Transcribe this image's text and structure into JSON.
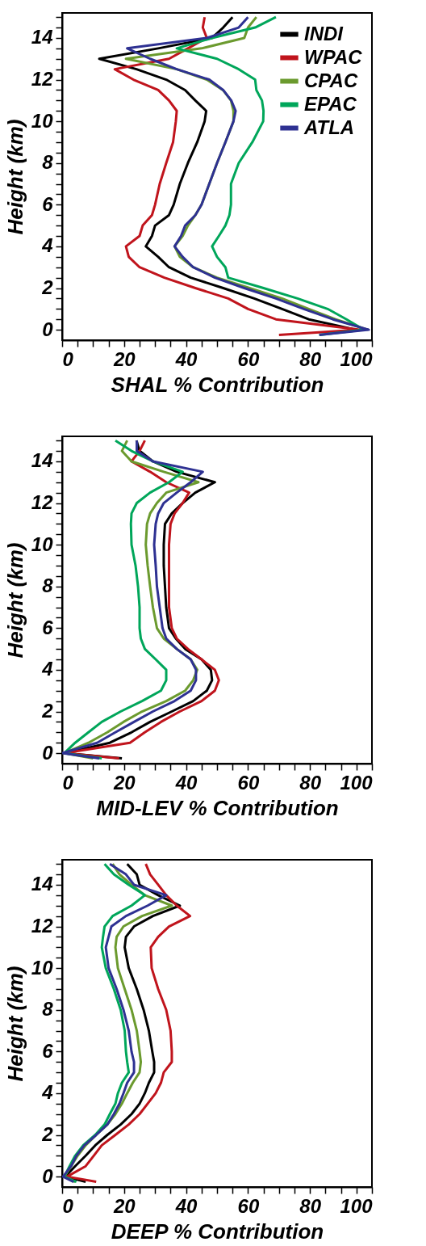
{
  "chart_data": [
    {
      "type": "line",
      "xlabel": "SHAL % Contribution",
      "ylabel": "Height (km)",
      "xlim": [
        0,
        100
      ],
      "ylim": [
        -0.5,
        15.2
      ],
      "legend": "top right",
      "line_style": "solid",
      "xticks": [
        0,
        {
          "value": 5,
          "label": null
        },
        {
          "value": 10,
          "label": null
        },
        {
          "value": 15,
          "label": null
        },
        20,
        {
          "value": 25,
          "label": null
        },
        {
          "value": 30,
          "label": null
        },
        {
          "value": 35,
          "label": null
        },
        40,
        {
          "value": 45,
          "label": null
        },
        {
          "value": 50,
          "label": null
        },
        {
          "value": 55,
          "label": null
        },
        60,
        {
          "value": 65,
          "label": null
        },
        {
          "value": 70,
          "label": null
        },
        {
          "value": 75,
          "label": null
        },
        80,
        {
          "value": 85,
          "label": null
        },
        {
          "value": 90,
          "label": null
        },
        {
          "value": 95,
          "label": null
        },
        100
      ],
      "yticks": [
        0,
        {
          "value": 0.5,
          "label": null
        },
        {
          "value": 1,
          "label": null
        },
        {
          "value": 1.5,
          "label": null
        },
        2,
        {
          "value": 2.5,
          "label": null
        },
        {
          "value": 3,
          "label": null
        },
        {
          "value": 3.5,
          "label": null
        },
        4,
        {
          "value": 4.5,
          "label": null
        },
        {
          "value": 5,
          "label": null
        },
        {
          "value": 5.5,
          "label": null
        },
        6,
        {
          "value": 6.5,
          "label": null
        },
        {
          "value": 7,
          "label": null
        },
        {
          "value": 7.5,
          "label": null
        },
        8,
        {
          "value": 8.5,
          "label": null
        },
        {
          "value": 9,
          "label": null
        },
        {
          "value": 9.5,
          "label": null
        },
        10,
        {
          "value": 10.5,
          "label": null
        },
        {
          "value": 11,
          "label": null
        },
        {
          "value": 11.5,
          "label": null
        },
        12,
        {
          "value": 12.5,
          "label": null
        },
        {
          "value": 13,
          "label": null
        },
        {
          "value": 13.5,
          "label": null
        },
        14,
        {
          "value": 14.5,
          "label": null
        },
        {
          "value": 15,
          "label": null
        }
      ],
      "series": [
        {
          "name": "INDI",
          "color": "#000000",
          "x": [
            95,
            79.6,
            71,
            62,
            52,
            41.5,
            34.5,
            31,
            27,
            29,
            30,
            34.5,
            36,
            38,
            40.6,
            43.6,
            46,
            46.5,
            43,
            39.7,
            33.6,
            24,
            12,
            31,
            48.4,
            52,
            55
          ],
          "values": [
            0,
            0.5,
            1,
            1.5,
            2,
            2.5,
            3,
            3.5,
            4,
            4.5,
            5,
            5.5,
            6,
            7,
            8,
            9,
            10,
            10.5,
            11,
            11.5,
            12,
            12.5,
            13,
            13.5,
            14,
            14.5,
            15
          ]
        },
        {
          "name": "WPAC",
          "color": "#c0141c",
          "x": [
            70,
            96,
            69,
            60,
            53.6,
            43,
            33,
            25,
            21.5,
            20.6,
            25,
            26,
            29,
            30,
            31.5,
            33.6,
            35.8,
            36.7,
            37,
            34.5,
            31,
            23,
            17,
            34.5,
            40.6,
            46.7,
            45.4,
            46
          ],
          "values": [
            -0.25,
            0,
            0.5,
            1,
            1.5,
            2,
            2.5,
            3,
            3.5,
            4,
            4.5,
            5,
            5.5,
            6,
            7,
            8,
            9,
            10,
            10.5,
            11,
            11.5,
            12,
            12.5,
            13,
            13.5,
            14,
            14.5,
            15
          ]
        },
        {
          "name": "CPAC",
          "color": "#6b9a2e",
          "x": [
            98.7,
            88.3,
            79.6,
            71,
            60.5,
            50,
            42.3,
            38,
            36.3,
            38.9,
            40.6,
            43,
            45,
            47.5,
            50,
            52.7,
            55.3,
            55.3,
            54.5,
            51.9,
            46.7,
            37,
            20.6,
            45,
            58.8,
            60,
            62.7
          ],
          "values": [
            0,
            0.5,
            1,
            1.5,
            2,
            2.5,
            3,
            3.5,
            4,
            4.5,
            5,
            5.5,
            6,
            7,
            8,
            9,
            10,
            10.5,
            11,
            11.5,
            12,
            12.5,
            13,
            13.5,
            14,
            14.5,
            15
          ]
        },
        {
          "name": "EPAC",
          "color": "#00a65a",
          "x": [
            83,
            97.4,
            91.8,
            85.7,
            76,
            65,
            53.6,
            52.7,
            50,
            48.4,
            50.6,
            52.7,
            54,
            54.5,
            54.5,
            57,
            61.4,
            64.9,
            65,
            64.5,
            62.7,
            62.3,
            57,
            50,
            37,
            48.4,
            62.3,
            69
          ],
          "values": [
            -0.25,
            0,
            0.5,
            1,
            1.5,
            2,
            2.5,
            3,
            3.5,
            4,
            4.5,
            5,
            5.5,
            6,
            7,
            8,
            9,
            10,
            10.5,
            11,
            11.5,
            12,
            12.5,
            13,
            13.5,
            14,
            14.5,
            15
          ]
        },
        {
          "name": "ATLA",
          "color": "#2e3192",
          "x": [
            83,
            99,
            87.4,
            78,
            69,
            58.8,
            49.3,
            42.3,
            38.9,
            36.3,
            38.4,
            39.7,
            43,
            45,
            47.5,
            50,
            52.7,
            55.3,
            56,
            54.6,
            52,
            47.5,
            37,
            28.4,
            21,
            46.7,
            57,
            60
          ],
          "values": [
            -0.25,
            0,
            0.5,
            1,
            1.5,
            2,
            2.5,
            3,
            3.5,
            4,
            4.5,
            5,
            5.5,
            6,
            7,
            8,
            9,
            10,
            10.5,
            11,
            11.5,
            12,
            12.5,
            13,
            13.5,
            14,
            14.5,
            15
          ]
        }
      ]
    },
    {
      "type": "line",
      "xlabel": "MID-LEV % Contribution",
      "ylabel": "Height (km)",
      "xlim": [
        0,
        100
      ],
      "ylim": [
        -0.5,
        15.2
      ],
      "line_style": "solid",
      "xticks": [
        0,
        {
          "value": 5,
          "label": null
        },
        {
          "value": 10,
          "label": null
        },
        {
          "value": 15,
          "label": null
        },
        20,
        {
          "value": 25,
          "label": null
        },
        {
          "value": 30,
          "label": null
        },
        {
          "value": 35,
          "label": null
        },
        40,
        {
          "value": 45,
          "label": null
        },
        {
          "value": 50,
          "label": null
        },
        {
          "value": 55,
          "label": null
        },
        60,
        {
          "value": 65,
          "label": null
        },
        {
          "value": 70,
          "label": null
        },
        {
          "value": 75,
          "label": null
        },
        80,
        {
          "value": 85,
          "label": null
        },
        {
          "value": 90,
          "label": null
        },
        {
          "value": 95,
          "label": null
        },
        100
      ],
      "yticks": [
        0,
        {
          "value": 0.5,
          "label": null
        },
        {
          "value": 1,
          "label": null
        },
        {
          "value": 1.5,
          "label": null
        },
        2,
        {
          "value": 2.5,
          "label": null
        },
        {
          "value": 3,
          "label": null
        },
        {
          "value": 3.5,
          "label": null
        },
        4,
        {
          "value": 4.5,
          "label": null
        },
        {
          "value": 5,
          "label": null
        },
        {
          "value": 5.5,
          "label": null
        },
        6,
        {
          "value": 6.5,
          "label": null
        },
        {
          "value": 7,
          "label": null
        },
        {
          "value": 7.5,
          "label": null
        },
        8,
        {
          "value": 8.5,
          "label": null
        },
        {
          "value": 9,
          "label": null
        },
        {
          "value": 9.5,
          "label": null
        },
        10,
        {
          "value": 10.5,
          "label": null
        },
        {
          "value": 11,
          "label": null
        },
        {
          "value": 11.5,
          "label": null
        },
        12,
        {
          "value": 12.5,
          "label": null
        },
        {
          "value": 13,
          "label": null
        },
        {
          "value": 13.5,
          "label": null
        },
        14,
        {
          "value": 14.5,
          "label": null
        },
        {
          "value": 15,
          "label": null
        }
      ],
      "series": [
        {
          "name": "INDI",
          "color": "#000000",
          "x": [
            19.3,
            0.7,
            15.4,
            22.4,
            28.4,
            35.4,
            42.3,
            46.7,
            48.4,
            48,
            45,
            39.7,
            36.7,
            34.5,
            33.6,
            33.2,
            32.8,
            32.8,
            33.2,
            35.4,
            38.9,
            43,
            49.3,
            37,
            29.3,
            25,
            24
          ],
          "values": [
            -0.25,
            0,
            0.5,
            1,
            1.5,
            2,
            2.5,
            3,
            3.5,
            4,
            4.5,
            5,
            5.5,
            6,
            7,
            8,
            9,
            10,
            11,
            11.5,
            12,
            12.5,
            13,
            13.5,
            14,
            14.5,
            15
          ]
        },
        {
          "name": "WPAC",
          "color": "#c0141c",
          "x": [
            18.4,
            0.7,
            21.9,
            26.7,
            31.9,
            38,
            45,
            49.3,
            50.6,
            49.3,
            45,
            40.6,
            37,
            35.4,
            34.5,
            34.5,
            34.5,
            34.5,
            35,
            36.3,
            38.9,
            41,
            33.6,
            28.4,
            22.4,
            25,
            26.7
          ],
          "values": [
            -0.25,
            0,
            0.5,
            1,
            1.5,
            2,
            2.5,
            3,
            3.5,
            4,
            4.5,
            5,
            5.5,
            6,
            7,
            8,
            9,
            10,
            11,
            11.5,
            12,
            12.5,
            13,
            13.5,
            14,
            14.5,
            15
          ]
        },
        {
          "name": "CPAC",
          "color": "#6b9a2e",
          "x": [
            10,
            0.7,
            8.5,
            14.6,
            19.8,
            25.8,
            33.6,
            39.7,
            42.3,
            43.6,
            41.5,
            37,
            32.8,
            30.6,
            29.3,
            28.4,
            27.6,
            27,
            27.4,
            28.4,
            30.6,
            33.6,
            44,
            32.8,
            22.4,
            19.3,
            21
          ],
          "values": [
            -0.25,
            0,
            0.5,
            1,
            1.5,
            2,
            2.5,
            3,
            3.5,
            4,
            4.5,
            5,
            5.5,
            6,
            7,
            8,
            9,
            10,
            11,
            11.5,
            12,
            12.5,
            13,
            13.5,
            14,
            14.5,
            15
          ]
        },
        {
          "name": "EPAC",
          "color": "#00a65a",
          "x": [
            12.8,
            0.7,
            4.2,
            8.5,
            12.8,
            18.9,
            25.8,
            31.9,
            33.6,
            33.6,
            30.2,
            26.7,
            25.4,
            25,
            25,
            24.5,
            23.7,
            22.4,
            22.2,
            22.4,
            24.1,
            28.4,
            34.5,
            38.9,
            29.3,
            22.4,
            17.2
          ],
          "values": [
            -0.25,
            0,
            0.5,
            1,
            1.5,
            2,
            2.5,
            3,
            3.5,
            4,
            4.5,
            5,
            5.5,
            6,
            7,
            8,
            9,
            10,
            11,
            11.5,
            12,
            12.5,
            13,
            13.5,
            14,
            14.5,
            15
          ]
        },
        {
          "name": "ATLA",
          "color": "#2e3192",
          "x": [
            12,
            0,
            11.3,
            17.2,
            23.2,
            29.3,
            36.3,
            41.5,
            43.2,
            43.2,
            41.5,
            37,
            33.6,
            32.4,
            31.5,
            30.6,
            30.2,
            29.7,
            30.2,
            31,
            32.8,
            37,
            41.5,
            45.4,
            29.3,
            24.1,
            24.1
          ],
          "values": [
            -0.25,
            0,
            0.5,
            1,
            1.5,
            2,
            2.5,
            3,
            3.5,
            4,
            4.5,
            5,
            5.5,
            6,
            7,
            8,
            9,
            10,
            11,
            11.5,
            12,
            12.5,
            13,
            13.5,
            14,
            14.5,
            15
          ]
        }
      ]
    },
    {
      "type": "line",
      "xlabel": "DEEP % Contribution",
      "ylabel": "Height (km)",
      "xlim": [
        0,
        100
      ],
      "ylim": [
        -0.5,
        15.2
      ],
      "line_style": "solid",
      "xticks": [
        0,
        {
          "value": 5,
          "label": null
        },
        {
          "value": 10,
          "label": null
        },
        {
          "value": 15,
          "label": null
        },
        20,
        {
          "value": 25,
          "label": null
        },
        {
          "value": 30,
          "label": null
        },
        {
          "value": 35,
          "label": null
        },
        40,
        {
          "value": 45,
          "label": null
        },
        {
          "value": 50,
          "label": null
        },
        {
          "value": 55,
          "label": null
        },
        60,
        {
          "value": 65,
          "label": null
        },
        {
          "value": 70,
          "label": null
        },
        {
          "value": 75,
          "label": null
        },
        80,
        {
          "value": 85,
          "label": null
        },
        {
          "value": 90,
          "label": null
        },
        {
          "value": 95,
          "label": null
        },
        100
      ],
      "yticks": [
        0,
        {
          "value": 0.5,
          "label": null
        },
        {
          "value": 1,
          "label": null
        },
        {
          "value": 1.5,
          "label": null
        },
        2,
        {
          "value": 2.5,
          "label": null
        },
        {
          "value": 3,
          "label": null
        },
        {
          "value": 3.5,
          "label": null
        },
        4,
        {
          "value": 4.5,
          "label": null
        },
        {
          "value": 5,
          "label": null
        },
        {
          "value": 5.5,
          "label": null
        },
        6,
        {
          "value": 6.5,
          "label": null
        },
        {
          "value": 7,
          "label": null
        },
        {
          "value": 7.5,
          "label": null
        },
        8,
        {
          "value": 8.5,
          "label": null
        },
        {
          "value": 9,
          "label": null
        },
        {
          "value": 9.5,
          "label": null
        },
        10,
        {
          "value": 10.5,
          "label": null
        },
        {
          "value": 11,
          "label": null
        },
        {
          "value": 11.5,
          "label": null
        },
        12,
        {
          "value": 12.5,
          "label": null
        },
        {
          "value": 13,
          "label": null
        },
        {
          "value": 13.5,
          "label": null
        },
        14,
        {
          "value": 14.5,
          "label": null
        },
        {
          "value": 15,
          "label": null
        }
      ],
      "series": [
        {
          "name": "INDI",
          "color": "#000000",
          "x": [
            7.6,
            1,
            4.2,
            7.6,
            10.7,
            14.6,
            18.9,
            22.4,
            25,
            26.7,
            28,
            29.7,
            29.7,
            29.1,
            28,
            26.3,
            24.1,
            21.5,
            20.2,
            20.6,
            23.2,
            29.3,
            38,
            31,
            25,
            24.1,
            21
          ],
          "values": [
            -0.25,
            0,
            0.5,
            1,
            1.5,
            2,
            2.5,
            3,
            3.5,
            4,
            4.5,
            5,
            5.5,
            6,
            7,
            8,
            9,
            10,
            11,
            11.5,
            12,
            12.5,
            13,
            13.5,
            14,
            14.5,
            15
          ]
        },
        {
          "name": "WPAC",
          "color": "#c0141c",
          "x": [
            11,
            1.6,
            7.6,
            10.2,
            12.8,
            17.2,
            21.5,
            25,
            27.6,
            30.2,
            31.9,
            32.8,
            35.4,
            35.4,
            35,
            33.6,
            31,
            28.9,
            28.6,
            31,
            34.5,
            41.3,
            37,
            33.6,
            31,
            28.4,
            27
          ],
          "values": [
            -0.25,
            0,
            0.5,
            1,
            1.5,
            2,
            2.5,
            3,
            3.5,
            4,
            4.5,
            5,
            5.5,
            6,
            7,
            8,
            9,
            10,
            11,
            11.5,
            12,
            12.5,
            13,
            13.5,
            14,
            14.5,
            15
          ]
        },
        {
          "name": "CPAC",
          "color": "#6b9a2e",
          "x": [
            4.2,
            0.7,
            2.9,
            5,
            7.6,
            11,
            14.6,
            17.2,
            19.3,
            21,
            22.8,
            25,
            25.4,
            25,
            24.1,
            22.4,
            20.2,
            18,
            17.2,
            17.6,
            19.8,
            25.8,
            35.4,
            26.7,
            22.4,
            18.5,
            16.3
          ],
          "values": [
            -0.25,
            0,
            0.5,
            1,
            1.5,
            2,
            2.5,
            3,
            3.5,
            4,
            4.5,
            5,
            5.5,
            6,
            7,
            8,
            9,
            10,
            11,
            11.5,
            12,
            12.5,
            13,
            13.5,
            14,
            14.5,
            15
          ]
        },
        {
          "name": "EPAC",
          "color": "#00a65a",
          "x": [
            4.6,
            0.7,
            2.4,
            4.2,
            6.8,
            10.7,
            13.7,
            15.4,
            17.2,
            18,
            19.3,
            21.5,
            21,
            20.6,
            20.2,
            18.9,
            16.7,
            14.1,
            12.8,
            13.2,
            13.7,
            16.3,
            22.4,
            26.7,
            21.5,
            16.7,
            13.7
          ],
          "values": [
            -0.25,
            0,
            0.5,
            1,
            1.5,
            2,
            2.5,
            3,
            3.5,
            4,
            4.5,
            5,
            5.5,
            6,
            7,
            8,
            9,
            10,
            11,
            11.5,
            12,
            12.5,
            13,
            13.5,
            14,
            14.5,
            15
          ]
        },
        {
          "name": "ATLA",
          "color": "#2e3192",
          "x": [
            3.7,
            0.3,
            2.9,
            4.6,
            7.2,
            11,
            14.6,
            16.7,
            18.5,
            19.8,
            21,
            23.2,
            23.2,
            22.4,
            21.5,
            19.8,
            17.6,
            15,
            14.1,
            15,
            15.9,
            20.6,
            27.6,
            33.6,
            23.2,
            20.6,
            15.4
          ],
          "values": [
            -0.25,
            0,
            0.5,
            1,
            1.5,
            2,
            2.5,
            3,
            3.5,
            4,
            4.5,
            5,
            5.5,
            6,
            7,
            8,
            9,
            10,
            11,
            11.5,
            12,
            12.5,
            13,
            13.5,
            14,
            14.5,
            15
          ]
        }
      ]
    }
  ]
}
